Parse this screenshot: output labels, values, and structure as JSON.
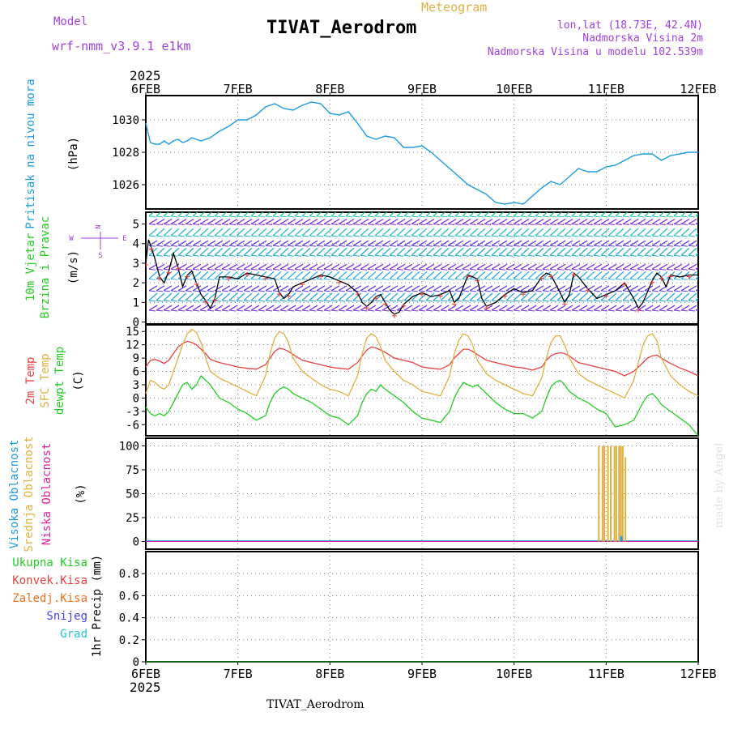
{
  "header": {
    "model_label": "Model",
    "model_name": "wrf-nmm_v3.9.1 e1km",
    "meteogram_label": "Meteogram",
    "station_title": "TIVAT_Aerodrom",
    "lonlat": "lon,lat (18.73E, 42.4N)",
    "altitude": "Nadmorska Visina 2m",
    "model_altitude": "Nadmorska Visina u modelu 102.539m",
    "credit": "made by Angel",
    "footer_title": "TIVAT_Aerodrom"
  },
  "colors": {
    "purple": "#a040e0",
    "orange": "#e0b040",
    "pressure": "#1e9be0",
    "red": "#e84040",
    "green": "#22cc22",
    "black": "#000000",
    "cyan": "#22c8c8",
    "magenta": "#e020a0",
    "blue": "#4444e8",
    "dark_orange": "#f07020",
    "grid": "#808080"
  },
  "time_axis": {
    "year": "2025",
    "labels": [
      "6FEB",
      "7FEB",
      "8FEB",
      "9FEB",
      "10FEB",
      "11FEB",
      "12FEB"
    ],
    "start_day": 6,
    "end_day": 12
  },
  "chart_data": [
    {
      "type": "line",
      "name": "pressure",
      "ylabels": [
        "Pritisak na nivou mora",
        "(hPa)"
      ],
      "ylim": [
        1024.5,
        1031.5
      ],
      "yticks": [
        1026,
        1028,
        1030
      ],
      "grid": true,
      "x_days": [
        6.0,
        6.05,
        6.1,
        6.15,
        6.2,
        6.25,
        6.3,
        6.35,
        6.4,
        6.45,
        6.5,
        6.6,
        6.7,
        6.8,
        6.9,
        7.0,
        7.1,
        7.2,
        7.3,
        7.4,
        7.5,
        7.6,
        7.7,
        7.8,
        7.9,
        8.0,
        8.1,
        8.2,
        8.3,
        8.4,
        8.5,
        8.6,
        8.7,
        8.8,
        8.9,
        9.0,
        9.1,
        9.2,
        9.3,
        9.4,
        9.5,
        9.6,
        9.7,
        9.8,
        9.9,
        10.0,
        10.1,
        10.2,
        10.3,
        10.4,
        10.5,
        10.6,
        10.7,
        10.8,
        10.9,
        11.0,
        11.1,
        11.2,
        11.3,
        11.4,
        11.5,
        11.6,
        11.7,
        11.8,
        11.9,
        12.0
      ],
      "values": [
        1029.8,
        1028.6,
        1028.5,
        1028.5,
        1028.7,
        1028.5,
        1028.7,
        1028.8,
        1028.6,
        1028.7,
        1028.9,
        1028.7,
        1028.9,
        1029.3,
        1029.6,
        1030.0,
        1030.0,
        1030.3,
        1030.8,
        1031.0,
        1030.7,
        1030.6,
        1030.9,
        1031.1,
        1031.0,
        1030.4,
        1030.3,
        1030.5,
        1029.8,
        1029.0,
        1028.8,
        1029.0,
        1028.9,
        1028.3,
        1028.3,
        1028.4,
        1028.0,
        1027.5,
        1027.0,
        1026.5,
        1026.0,
        1025.7,
        1025.4,
        1024.9,
        1024.8,
        1024.9,
        1024.8,
        1025.3,
        1025.8,
        1026.2,
        1026.0,
        1026.5,
        1027.0,
        1026.8,
        1026.8,
        1027.1,
        1027.2,
        1027.5,
        1027.8,
        1027.9,
        1027.9,
        1027.5,
        1027.8,
        1027.9,
        1028.0,
        1028.0
      ]
    },
    {
      "type": "line",
      "name": "wind",
      "ylabels": [
        "10m Vjetar",
        "Brzina i Pravac",
        "(m/s)"
      ],
      "compass": {
        "west": "W",
        "east": "E",
        "north": "N",
        "south": "S"
      },
      "ylim": [
        -0.1,
        5.6
      ],
      "yticks": [
        0,
        1,
        2,
        3,
        4,
        5
      ],
      "grid": true,
      "x_days": [
        6.0,
        6.03,
        6.06,
        6.1,
        6.15,
        6.2,
        6.25,
        6.3,
        6.35,
        6.4,
        6.45,
        6.5,
        6.55,
        6.6,
        6.65,
        6.7,
        6.75,
        6.8,
        6.9,
        7.0,
        7.1,
        7.2,
        7.3,
        7.4,
        7.45,
        7.5,
        7.55,
        7.6,
        7.7,
        7.8,
        7.9,
        8.0,
        8.1,
        8.2,
        8.3,
        8.35,
        8.4,
        8.45,
        8.5,
        8.55,
        8.6,
        8.65,
        8.7,
        8.75,
        8.8,
        8.9,
        9.0,
        9.1,
        9.2,
        9.3,
        9.35,
        9.4,
        9.5,
        9.55,
        9.6,
        9.65,
        9.7,
        9.8,
        9.9,
        10.0,
        10.1,
        10.2,
        10.3,
        10.35,
        10.4,
        10.5,
        10.55,
        10.6,
        10.65,
        10.7,
        10.8,
        10.9,
        11.0,
        11.1,
        11.2,
        11.3,
        11.35,
        11.4,
        11.5,
        11.55,
        11.6,
        11.65,
        11.7,
        11.8,
        11.9,
        12.0
      ],
      "values": [
        3.0,
        4.2,
        3.8,
        3.2,
        2.3,
        2.0,
        2.6,
        3.5,
        2.8,
        1.8,
        2.4,
        2.6,
        2.0,
        1.4,
        1.1,
        0.7,
        1.2,
        2.3,
        2.3,
        2.2,
        2.5,
        2.4,
        2.3,
        2.2,
        1.5,
        1.2,
        1.4,
        1.8,
        2.0,
        2.2,
        2.4,
        2.3,
        2.1,
        1.9,
        1.5,
        1.0,
        0.8,
        1.0,
        1.3,
        1.4,
        1.0,
        0.6,
        0.4,
        0.5,
        0.9,
        1.3,
        1.5,
        1.3,
        1.4,
        1.6,
        1.0,
        1.2,
        2.4,
        2.3,
        2.2,
        1.2,
        0.8,
        1.0,
        1.4,
        1.7,
        1.5,
        1.6,
        2.3,
        2.5,
        2.4,
        1.5,
        1.0,
        1.4,
        2.5,
        2.3,
        1.7,
        1.2,
        1.4,
        1.6,
        2.0,
        1.2,
        0.7,
        1.0,
        2.1,
        2.5,
        2.3,
        1.8,
        2.4,
        2.3,
        2.4,
        2.4
      ]
    },
    {
      "type": "line",
      "name": "temperature",
      "ylabels": [
        "2m Temp",
        "SFC Temp",
        "dewpt Temp",
        "(C)"
      ],
      "ylim": [
        -8.5,
        16.5
      ],
      "yticks": [
        -6,
        -3,
        0,
        3,
        6,
        9,
        12,
        15
      ],
      "grid": true,
      "x_days": [
        6.0,
        6.05,
        6.1,
        6.15,
        6.2,
        6.25,
        6.3,
        6.35,
        6.4,
        6.45,
        6.5,
        6.55,
        6.6,
        6.65,
        6.7,
        6.8,
        6.9,
        7.0,
        7.1,
        7.2,
        7.3,
        7.35,
        7.4,
        7.45,
        7.5,
        7.55,
        7.6,
        7.7,
        7.8,
        7.9,
        8.0,
        8.1,
        8.2,
        8.3,
        8.35,
        8.4,
        8.45,
        8.5,
        8.55,
        8.6,
        8.7,
        8.8,
        8.9,
        9.0,
        9.1,
        9.2,
        9.3,
        9.35,
        9.4,
        9.45,
        9.5,
        9.55,
        9.6,
        9.7,
        9.8,
        9.9,
        10.0,
        10.1,
        10.2,
        10.3,
        10.35,
        10.4,
        10.45,
        10.5,
        10.55,
        10.6,
        10.7,
        10.8,
        10.9,
        11.0,
        11.1,
        11.2,
        11.3,
        11.35,
        11.4,
        11.45,
        11.5,
        11.55,
        11.6,
        11.7,
        11.8,
        11.9,
        12.0
      ],
      "series": [
        {
          "name": "2m Temp",
          "color_key": "red",
          "values": [
            7.0,
            8.5,
            8.7,
            8.3,
            7.8,
            8.5,
            10.0,
            11.5,
            12.3,
            12.8,
            12.5,
            12.0,
            11.0,
            10.0,
            8.7,
            8.0,
            7.5,
            7.0,
            6.7,
            6.5,
            7.5,
            9.0,
            10.5,
            11.2,
            11.0,
            10.5,
            9.8,
            8.5,
            8.0,
            7.5,
            7.0,
            6.7,
            6.5,
            8.0,
            9.5,
            10.8,
            11.5,
            11.3,
            10.8,
            10.3,
            9.0,
            8.5,
            8.0,
            7.0,
            6.7,
            6.5,
            7.5,
            9.0,
            10.0,
            11.0,
            11.0,
            10.5,
            9.8,
            8.5,
            8.0,
            7.5,
            7.0,
            6.8,
            6.3,
            7.0,
            8.5,
            9.5,
            10.0,
            10.2,
            10.0,
            9.5,
            8.0,
            7.5,
            7.0,
            6.5,
            6.0,
            5.0,
            6.0,
            7.0,
            8.0,
            9.0,
            9.5,
            9.7,
            9.0,
            7.8,
            6.8,
            6.0,
            5.0
          ]
        },
        {
          "name": "SFC Temp",
          "color_key": "orange",
          "values": [
            1.0,
            4.0,
            3.5,
            2.5,
            2.0,
            3.0,
            6.0,
            9.0,
            12.0,
            14.5,
            15.5,
            14.8,
            12.5,
            9.0,
            6.0,
            4.5,
            3.5,
            2.5,
            1.5,
            0.5,
            5.0,
            10.0,
            13.5,
            15.0,
            14.5,
            12.5,
            9.0,
            6.0,
            4.5,
            3.0,
            2.0,
            1.5,
            0.5,
            5.0,
            10.0,
            13.5,
            14.5,
            13.8,
            11.5,
            8.5,
            6.0,
            4.0,
            3.0,
            1.5,
            1.0,
            0.5,
            5.0,
            10.0,
            13.0,
            14.5,
            14.0,
            12.0,
            8.5,
            5.5,
            4.0,
            3.0,
            2.0,
            1.0,
            0.5,
            4.5,
            9.0,
            12.5,
            14.0,
            14.0,
            12.0,
            9.0,
            5.5,
            4.0,
            3.0,
            2.0,
            1.0,
            0.0,
            4.0,
            8.0,
            12.0,
            14.0,
            14.5,
            13.0,
            9.0,
            5.0,
            3.0,
            1.5,
            0.5
          ]
        },
        {
          "name": "dewpt Temp",
          "color_key": "green",
          "values": [
            -2.0,
            -3.5,
            -4.0,
            -3.5,
            -4.0,
            -3.0,
            -1.0,
            1.0,
            3.0,
            3.5,
            2.0,
            3.0,
            5.0,
            4.0,
            3.0,
            0.0,
            -1.0,
            -2.5,
            -3.5,
            -5.0,
            -4.0,
            -1.0,
            1.0,
            2.0,
            2.5,
            2.0,
            1.0,
            0.0,
            -1.0,
            -2.5,
            -4.0,
            -4.5,
            -6.0,
            -4.0,
            -1.0,
            1.0,
            2.0,
            1.5,
            3.0,
            2.0,
            0.5,
            -1.0,
            -3.0,
            -4.5,
            -5.0,
            -5.5,
            -3.0,
            0.0,
            2.0,
            3.5,
            3.0,
            2.5,
            3.0,
            1.0,
            -1.0,
            -2.5,
            -3.5,
            -3.5,
            -4.5,
            -3.0,
            0.0,
            2.5,
            3.5,
            4.0,
            3.0,
            1.5,
            0.0,
            -1.0,
            -2.5,
            -3.5,
            -6.5,
            -6.0,
            -5.0,
            -3.0,
            -1.0,
            0.5,
            1.0,
            0.0,
            -1.5,
            -3.0,
            -4.5,
            -6.0,
            -8.5
          ]
        }
      ]
    },
    {
      "type": "bar",
      "name": "cloud",
      "ylabels": [
        "Visoka Oblacnost",
        "Srednja Oblacnost",
        "Niska Oblacnost",
        "(%)"
      ],
      "ylim": [
        -8,
        108
      ],
      "yticks": [
        0,
        25,
        50,
        75,
        100
      ],
      "grid": true,
      "series": [
        {
          "name": "Srednja Oblacnost",
          "color_key": "orange",
          "x_days": [
            10.92,
            10.96,
            10.98,
            11.02,
            11.05,
            11.09,
            11.11,
            11.14,
            11.16,
            11.18,
            11.21
          ],
          "values": [
            100,
            100,
            100,
            100,
            100,
            100,
            100,
            100,
            100,
            100,
            88
          ]
        },
        {
          "name": "Visoka Oblacnost",
          "color_key": "pressure",
          "x_days": [
            11.16,
            11.17
          ],
          "values": [
            6,
            5
          ]
        },
        {
          "name": "Niska Oblacnost",
          "color_key": "magenta",
          "x_days": [],
          "values": []
        }
      ]
    },
    {
      "type": "bar",
      "name": "precip",
      "ylabels": [
        "1hr Precip (mm)"
      ],
      "legend": [
        {
          "label": "Ukupna Kisa",
          "color_key": "green"
        },
        {
          "label": "Konvek.Kisa",
          "color_key": "red"
        },
        {
          "label": "Zaledj.Kisa",
          "color_key": "dark_orange"
        },
        {
          "label": "Snijeg",
          "color_key": "blue"
        },
        {
          "label": "Grad",
          "color_key": "cyan"
        }
      ],
      "ylim": [
        0,
        1.0
      ],
      "yticks": [
        0,
        0.2,
        0.4,
        0.6,
        0.8
      ],
      "grid": true,
      "x_days": [],
      "values": []
    }
  ]
}
